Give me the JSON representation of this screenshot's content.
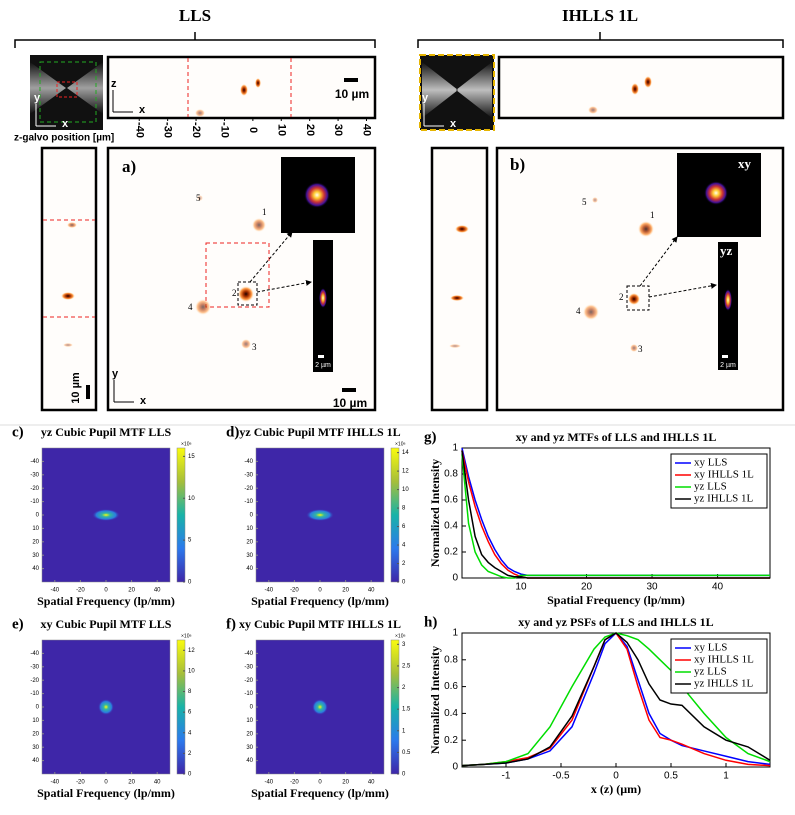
{
  "figure": {
    "lls_title": "LLS",
    "ihlls_title": "IHLLS 1L",
    "galvo_label": "z-galvo position [µm]",
    "galvo_ticks": [
      -40,
      -30,
      -20,
      -10,
      0,
      10,
      20,
      30,
      40
    ],
    "galvo_lim": [
      -51,
      43
    ],
    "axis_x": "x",
    "axis_y": "y",
    "axis_z": "z",
    "scale_10": "10 µm",
    "scale_2": "2 µm",
    "panel_a": "a)",
    "panel_b": "b)",
    "beads": [
      "1",
      "2",
      "3",
      "4",
      "5"
    ],
    "inset_xy": "xy",
    "inset_yz": "yz"
  },
  "heatmaps": [
    {
      "label": "c)",
      "title": "yz Cubic Pupil MTF LLS",
      "xlabel": "Spatial Frequency (lp/mm)",
      "xlim": [
        -50,
        50
      ],
      "ylim": [
        -50,
        50
      ],
      "xticks": [
        -40,
        -20,
        0,
        20,
        40
      ],
      "yticks": [
        -40,
        -30,
        -20,
        -10,
        0,
        10,
        20,
        30,
        40
      ],
      "clim": [
        0,
        16
      ],
      "cticks": [
        0,
        5,
        10,
        15
      ],
      "cbar_exponent": "×10⁶",
      "spot": "yz"
    },
    {
      "label": "d)",
      "title": "yz Cubic Pupil MTF IHLLS 1L",
      "xlabel": "Spatial Frequency (lp/mm)",
      "xlim": [
        -50,
        50
      ],
      "ylim": [
        -50,
        50
      ],
      "xticks": [
        -40,
        -20,
        0,
        20,
        40
      ],
      "yticks": [
        -40,
        -30,
        -20,
        -10,
        0,
        10,
        20,
        30,
        40
      ],
      "clim": [
        0,
        14.5
      ],
      "cticks": [
        0,
        2,
        4,
        6,
        8,
        10,
        12,
        14
      ],
      "cbar_exponent": "×10⁶",
      "spot": "yz"
    },
    {
      "label": "e)",
      "title": "xy Cubic Pupil MTF LLS",
      "xlabel": "Spatial Frequency (lp/mm)",
      "xlim": [
        -50,
        50
      ],
      "ylim": [
        -50,
        50
      ],
      "xticks": [
        -40,
        -20,
        0,
        20,
        40
      ],
      "yticks": [
        -40,
        -30,
        -20,
        -10,
        0,
        10,
        20,
        30,
        40
      ],
      "clim": [
        0,
        13
      ],
      "cticks": [
        0,
        2,
        4,
        6,
        8,
        10,
        12
      ],
      "cbar_exponent": "×10⁶",
      "spot": "xy"
    },
    {
      "label": "f)",
      "title": "xy Cubic Pupil MTF IHLLS 1L",
      "xlabel": "Spatial Frequency (lp/mm)",
      "xlim": [
        -50,
        50
      ],
      "ylim": [
        -50,
        50
      ],
      "xticks": [
        -40,
        -20,
        0,
        20,
        40
      ],
      "yticks": [
        -40,
        -30,
        -20,
        -10,
        0,
        10,
        20,
        30,
        40
      ],
      "clim": [
        0,
        3.1
      ],
      "cticks": [
        0,
        0.5,
        1,
        1.5,
        2,
        2.5,
        3
      ],
      "cbar_exponent": "×10⁶",
      "spot": "xy"
    }
  ],
  "chart_data": [
    {
      "type": "line",
      "label": "g)",
      "title": "xy and yz MTFs of LLS and IHLLS 1L",
      "xlabel": "Spatial Frequency (lp/mm)",
      "ylabel": "Normalized Intensity",
      "xlim": [
        1,
        48
      ],
      "ylim": [
        0,
        1
      ],
      "xticks": [
        10,
        20,
        30,
        40
      ],
      "yticks": [
        0,
        0.2,
        0.4,
        0.6,
        0.8,
        1
      ],
      "x": [
        1,
        2,
        3,
        4,
        5,
        6,
        7,
        8,
        9,
        10,
        11,
        12,
        15,
        20,
        30,
        40,
        48
      ],
      "series": [
        {
          "name": "xy LLS",
          "color": "#0000ff",
          "values": [
            1,
            0.78,
            0.6,
            0.45,
            0.32,
            0.22,
            0.14,
            0.08,
            0.05,
            0.03,
            0.02,
            0.02,
            0.02,
            0.02,
            0.02,
            0.02,
            0.02
          ]
        },
        {
          "name": "xy IHLLS 1L",
          "color": "#ff0000",
          "values": [
            0.98,
            0.74,
            0.55,
            0.4,
            0.28,
            0.18,
            0.11,
            0.06,
            0.03,
            0.01,
            0,
            0,
            0,
            0,
            0,
            0,
            0
          ]
        },
        {
          "name": "yz LLS",
          "color": "#00dd00",
          "values": [
            0.95,
            0.42,
            0.2,
            0.1,
            0.05,
            0.03,
            0.01,
            0,
            0,
            0.02,
            0.02,
            0.02,
            0.02,
            0.02,
            0.02,
            0.02,
            0.02
          ]
        },
        {
          "name": "yz IHLLS 1L",
          "color": "#000000",
          "values": [
            0.98,
            0.6,
            0.32,
            0.18,
            0.12,
            0.08,
            0.05,
            0.02,
            0.01,
            0.01,
            0,
            0,
            0,
            0,
            0,
            0,
            0
          ]
        }
      ],
      "legend": "upper right"
    },
    {
      "type": "line",
      "label": "h)",
      "title": "xy and yz PSFs of LLS and IHLLS 1L",
      "xlabel": "x (z) (µm)",
      "ylabel": "Normalized Intensity",
      "xlim": [
        -1.4,
        1.4
      ],
      "ylim": [
        0,
        1
      ],
      "xticks": [
        -1,
        -0.5,
        0,
        0.5,
        1
      ],
      "yticks": [
        0,
        0.2,
        0.4,
        0.6,
        0.8,
        1
      ],
      "x": [
        -1.4,
        -1.2,
        -1,
        -0.8,
        -0.6,
        -0.4,
        -0.2,
        -0.1,
        0,
        0.1,
        0.2,
        0.3,
        0.4,
        0.5,
        0.6,
        0.8,
        1,
        1.2,
        1.4
      ],
      "series": [
        {
          "name": "xy LLS",
          "color": "#0000ff",
          "values": [
            0.01,
            0.02,
            0.03,
            0.06,
            0.12,
            0.3,
            0.7,
            0.92,
            1,
            0.9,
            0.65,
            0.4,
            0.25,
            0.2,
            0.16,
            0.12,
            0.08,
            0.04,
            0.02
          ]
        },
        {
          "name": "xy IHLLS 1L",
          "color": "#ff0000",
          "values": [
            0.01,
            0.02,
            0.04,
            0.07,
            0.14,
            0.35,
            0.75,
            0.95,
            1,
            0.88,
            0.6,
            0.35,
            0.22,
            0.2,
            0.17,
            0.1,
            0.05,
            0.02,
            0.01
          ]
        },
        {
          "name": "yz LLS",
          "color": "#00dd00",
          "values": [
            0.01,
            0.02,
            0.04,
            0.1,
            0.3,
            0.6,
            0.88,
            0.97,
            1,
            0.98,
            0.95,
            0.88,
            0.8,
            0.72,
            0.6,
            0.4,
            0.22,
            0.1,
            0.04
          ]
        },
        {
          "name": "yz IHLLS 1L",
          "color": "#000000",
          "values": [
            0.01,
            0.02,
            0.03,
            0.06,
            0.15,
            0.38,
            0.75,
            0.95,
            1,
            0.93,
            0.8,
            0.62,
            0.5,
            0.47,
            0.46,
            0.3,
            0.2,
            0.15,
            0.05
          ]
        }
      ],
      "legend": "upper right"
    }
  ]
}
